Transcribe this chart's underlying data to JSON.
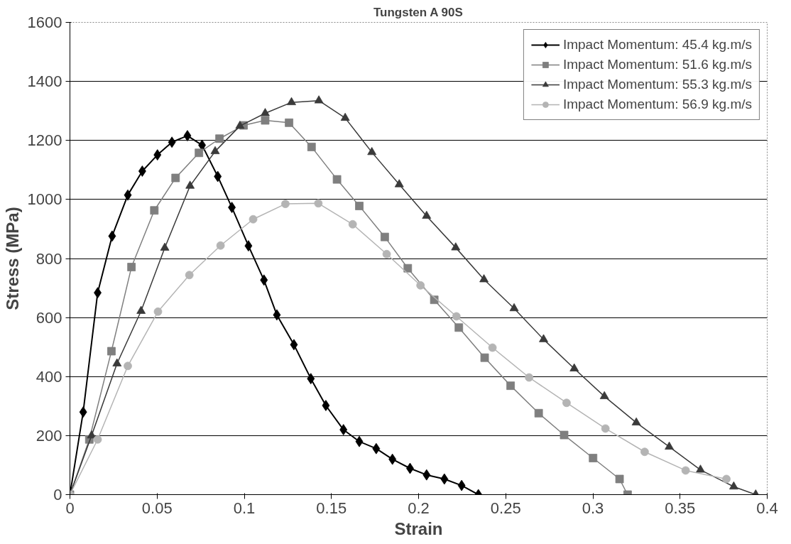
{
  "chart_data": {
    "type": "line",
    "title": "Tungsten A 90S",
    "xlabel": "Strain",
    "ylabel": "Stress (MPa)",
    "xlim": [
      0,
      0.4
    ],
    "ylim": [
      0,
      1600
    ],
    "xticks": [
      0,
      0.05,
      0.1,
      0.15,
      0.2,
      0.25,
      0.3,
      0.35,
      0.4
    ],
    "yticks": [
      0,
      200,
      400,
      600,
      800,
      1000,
      1200,
      1400,
      1600
    ],
    "grid": "y",
    "legend": "top right",
    "series": [
      {
        "name": "Impact Momentum: 45.4 kg.m/s",
        "color": "#000000",
        "marker": "diamond",
        "x": [
          0,
          0.0076,
          0.0159,
          0.0242,
          0.0332,
          0.0415,
          0.0502,
          0.0585,
          0.0674,
          0.0758,
          0.0848,
          0.0929,
          0.1024,
          0.1113,
          0.1187,
          0.1285,
          0.1382,
          0.1468,
          0.1569,
          0.166,
          0.1757,
          0.185,
          0.1951,
          0.2046,
          0.2148,
          0.2247,
          0.2343
        ],
        "values": [
          0,
          280,
          684,
          876,
          1015,
          1096,
          1151,
          1194,
          1216,
          1184,
          1078,
          973,
          843,
          727,
          609,
          508,
          393,
          302,
          220,
          180,
          156,
          120,
          89,
          67,
          53,
          31,
          0
        ]
      },
      {
        "name": "Impact Momentum: 51.6 kg.m/s",
        "color": "#7f7f7f",
        "marker": "square",
        "x": [
          0,
          0.0111,
          0.0238,
          0.0353,
          0.0484,
          0.0606,
          0.074,
          0.0858,
          0.0996,
          0.112,
          0.1257,
          0.1386,
          0.1532,
          0.166,
          0.1806,
          0.1938,
          0.209,
          0.2231,
          0.2379,
          0.2528,
          0.2689,
          0.2835,
          0.3001,
          0.3153,
          0.3199
        ],
        "values": [
          0,
          187,
          486,
          771,
          963,
          1073,
          1158,
          1206,
          1251,
          1268,
          1260,
          1178,
          1068,
          978,
          873,
          767,
          660,
          566,
          464,
          369,
          276,
          202,
          124,
          53,
          0
        ]
      },
      {
        "name": "Impact Momentum: 55.3 kg.m/s",
        "color": "#3a3a3a",
        "marker": "triangle",
        "x": [
          0,
          0.0124,
          0.027,
          0.0408,
          0.0544,
          0.0689,
          0.0833,
          0.0975,
          0.112,
          0.1271,
          0.1428,
          0.1579,
          0.1732,
          0.1889,
          0.2046,
          0.2213,
          0.2375,
          0.2548,
          0.2717,
          0.2893,
          0.3066,
          0.3249,
          0.3438,
          0.3617,
          0.3808,
          0.3934
        ],
        "values": [
          0,
          200,
          444,
          622,
          836,
          1046,
          1163,
          1249,
          1292,
          1329,
          1335,
          1276,
          1160,
          1051,
          944,
          837,
          729,
          631,
          526,
          427,
          333,
          244,
          162,
          84,
          27,
          0
        ]
      },
      {
        "name": "Impact Momentum: 56.9 kg.m/s",
        "color": "#b4b4b4",
        "marker": "circle",
        "x": [
          0,
          0.0159,
          0.0332,
          0.0505,
          0.0685,
          0.0864,
          0.1051,
          0.1236,
          0.1425,
          0.1622,
          0.1817,
          0.2011,
          0.2217,
          0.2424,
          0.2634,
          0.2849,
          0.3072,
          0.3297,
          0.3532,
          0.3766
        ],
        "values": [
          0,
          187,
          436,
          620,
          744,
          844,
          933,
          985,
          987,
          916,
          815,
          709,
          604,
          498,
          397,
          311,
          224,
          145,
          82,
          53
        ]
      }
    ]
  }
}
